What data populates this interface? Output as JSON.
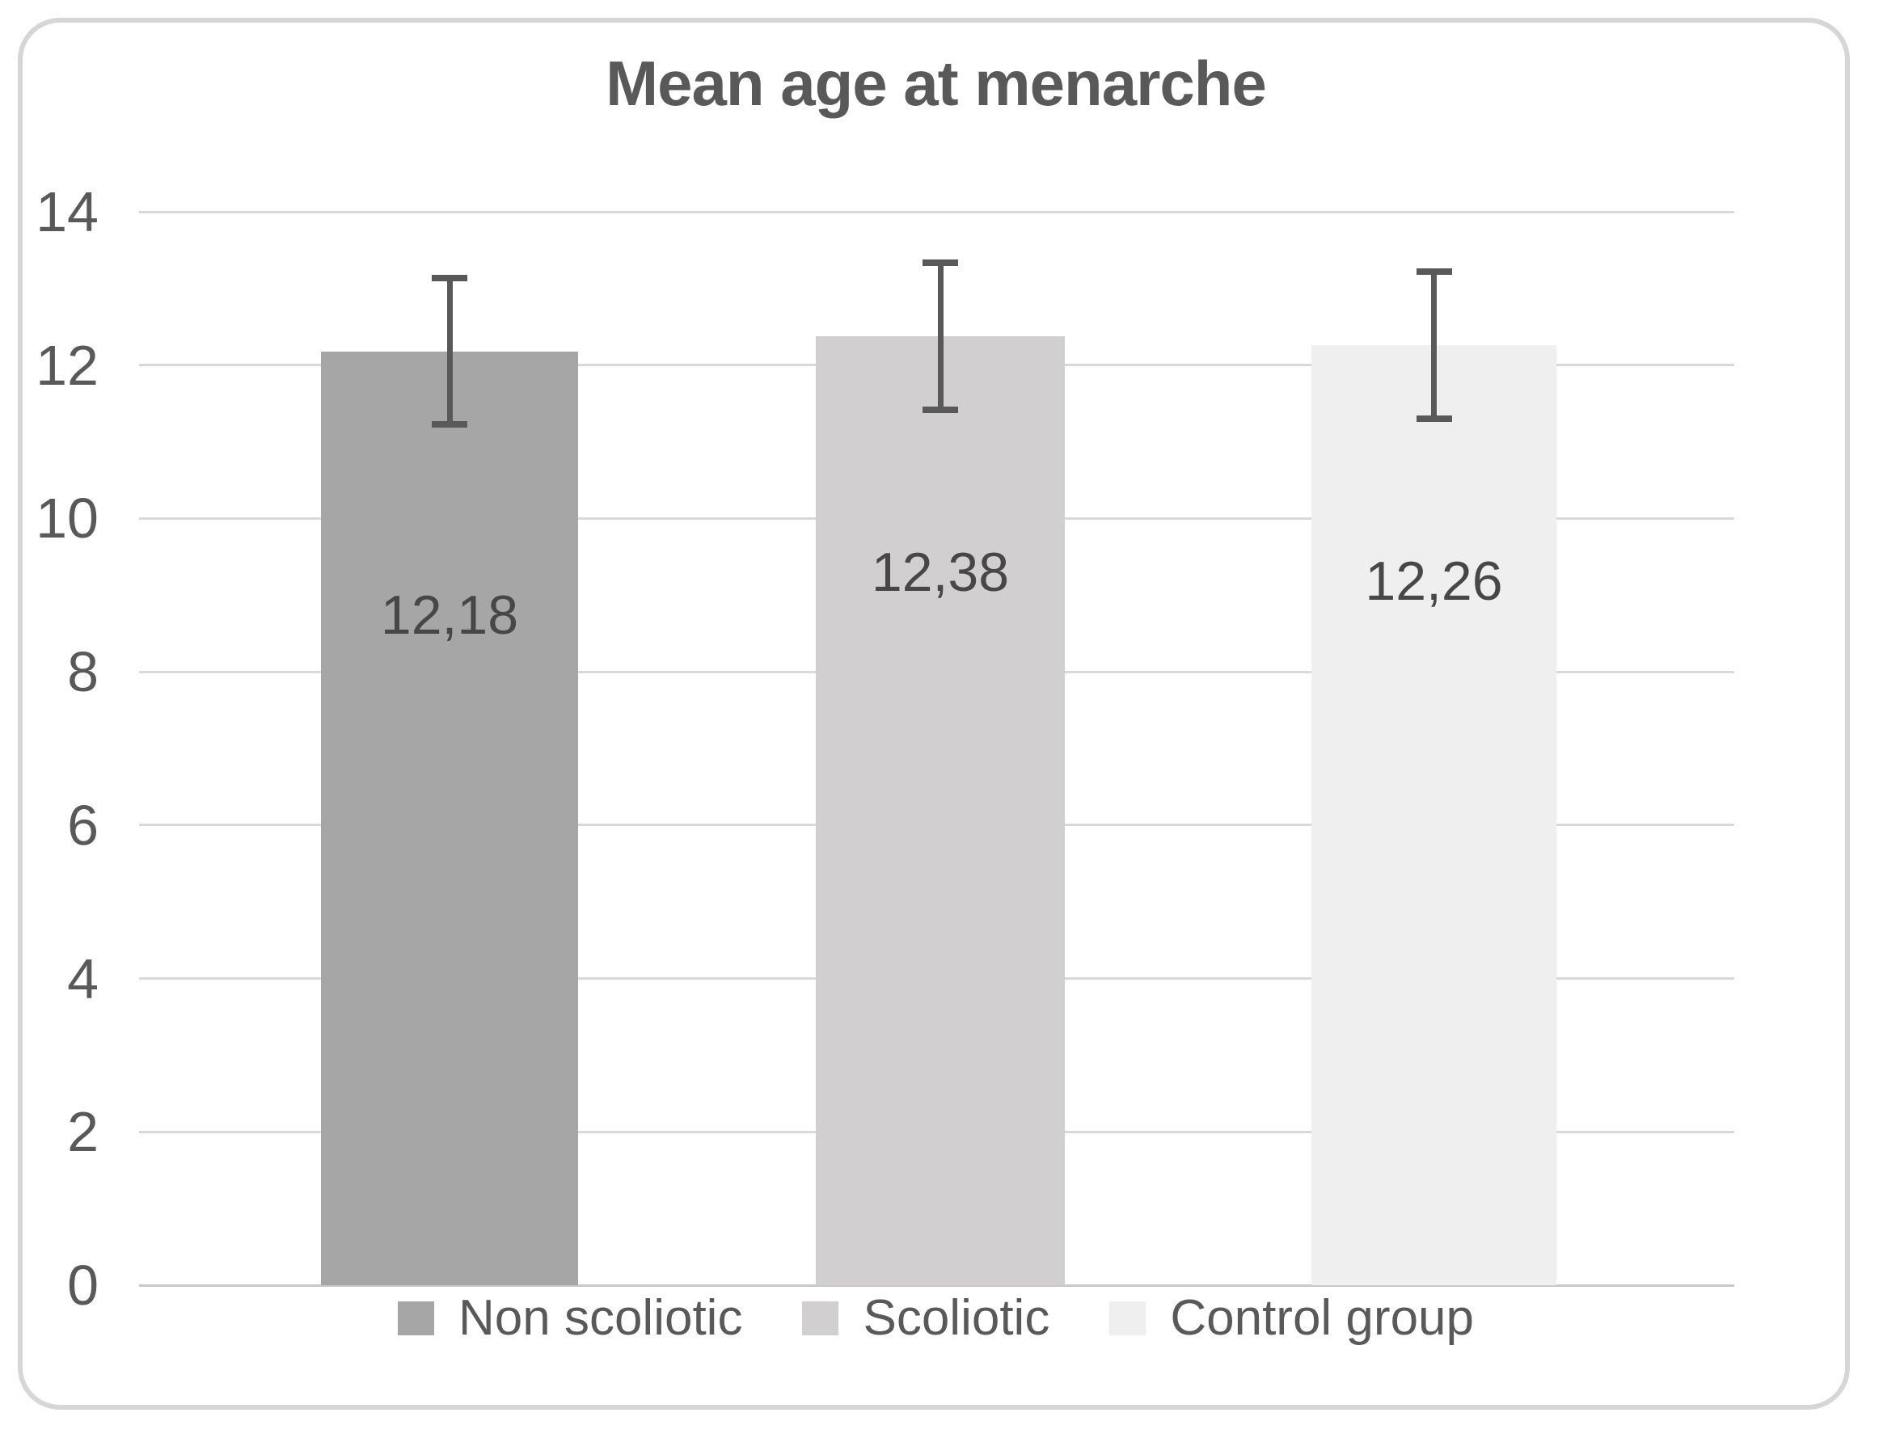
{
  "chart_data": {
    "type": "bar",
    "title": "Mean age at menarche",
    "categories": [
      "Non scoliotic",
      "Scoliotic",
      "Control group"
    ],
    "values": [
      12.18,
      12.38,
      12.26
    ],
    "value_labels": [
      "12,18",
      "12,38",
      "12,26"
    ],
    "errors": [
      1.0,
      1.0,
      1.0
    ],
    "bar_colors": [
      "#a6a6a6",
      "#d1cfcf",
      "#efefef"
    ],
    "xlabel": "",
    "ylabel": "",
    "ylim": [
      0,
      14
    ],
    "yticks": [
      0,
      2,
      4,
      6,
      8,
      10,
      12,
      14
    ],
    "grid": true,
    "legend_position": "bottom",
    "colors": {
      "text": "#595959",
      "data_label_text": "#474747",
      "gridline": "#d9d9d9",
      "baseline": "#c8c8c8",
      "error_bar": "#595959",
      "frame_border": "#d6d6d6",
      "background": "#ffffff"
    }
  }
}
